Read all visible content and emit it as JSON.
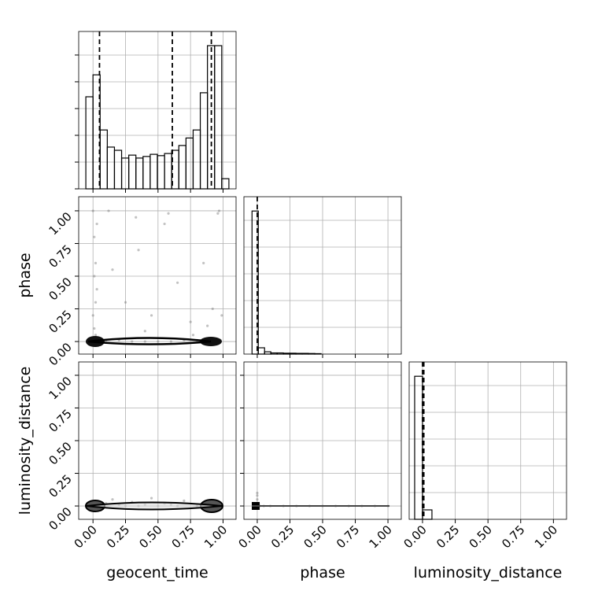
{
  "chart_data": [
    {
      "type": "histogram",
      "xlim": [
        -0.11,
        1.1
      ],
      "ylim": [
        0,
        5.88
      ],
      "bins": [
        -0.055,
        0.0,
        0.055,
        0.11,
        0.165,
        0.22,
        0.275,
        0.33,
        0.385,
        0.44,
        0.495,
        0.55,
        0.605,
        0.66,
        0.715,
        0.77,
        0.825,
        0.88,
        0.935,
        0.99,
        1.045
      ],
      "counts": [
        3.44,
        4.26,
        2.2,
        1.56,
        1.44,
        1.15,
        1.26,
        1.15,
        1.21,
        1.29,
        1.24,
        1.32,
        1.44,
        1.62,
        1.9,
        2.2,
        3.59,
        5.35,
        5.35,
        0.38
      ],
      "quantiles": [
        0.05,
        0.61,
        0.91
      ],
      "xticks": [
        0,
        0.25,
        0.5,
        0.75,
        1
      ],
      "yticks": [
        0,
        1,
        2,
        3,
        4,
        5
      ],
      "show_xtick_labels": false,
      "grid": true
    },
    {
      "type": "scatter",
      "ylabel": "phase",
      "xlim": [
        -0.11,
        1.1
      ],
      "ylim": [
        -0.096,
        1.108
      ],
      "x": [
        0.0,
        0.01,
        0.02,
        0.03,
        0.0,
        0.01,
        0.02,
        0.05,
        0.1,
        0.2,
        0.3,
        0.4,
        0.5,
        0.6,
        0.7,
        0.8,
        0.9,
        0.95,
        0.98,
        0.15,
        0.25,
        0.35,
        0.45,
        0.55,
        0.65,
        0.75,
        0.85,
        0.92,
        0.97,
        0.03,
        0.12,
        0.33,
        0.58,
        0.77,
        0.96,
        0.01,
        0.02,
        0.4,
        0.88,
        0.99
      ],
      "y": [
        1.0,
        0.8,
        0.6,
        0.4,
        0.2,
        0.1,
        0.05,
        0.02,
        0.01,
        0.01,
        0.0,
        0.0,
        0.0,
        0.0,
        0.01,
        0.01,
        0.0,
        0.0,
        0.01,
        0.55,
        0.3,
        0.7,
        0.2,
        0.9,
        0.45,
        0.15,
        0.6,
        0.25,
        1.0,
        0.9,
        1.0,
        0.95,
        0.98,
        0.05,
        0.98,
        0.5,
        0.3,
        0.08,
        0.12,
        0.2
      ],
      "xticks": [
        0,
        0.25,
        0.5,
        0.75,
        1
      ],
      "show_xtick_labels": false,
      "yticks": [
        {
          "value": 0,
          "label": "0.00"
        },
        {
          "value": 0.25,
          "label": "0.25"
        },
        {
          "value": 0.5,
          "label": "0.50"
        },
        {
          "value": 0.75,
          "label": "0.75"
        },
        {
          "value": 1,
          "label": "1.00"
        }
      ],
      "show_ytick_labels": true,
      "grid": true
    },
    {
      "type": "histogram",
      "xlim": [
        -0.102,
        1.102
      ],
      "ylim": [
        0,
        1.1
      ],
      "bins": [
        -0.04,
        0.008,
        0.056,
        0.104,
        0.152,
        0.2,
        0.248,
        0.296,
        0.344,
        0.392,
        0.44,
        0.488
      ],
      "counts": [
        1.0,
        0.044,
        0.016,
        0.008,
        0.008,
        0.006,
        0.006,
        0.005,
        0.005,
        0.004,
        0.003
      ],
      "quantiles": [
        0.0
      ],
      "xticks": [
        0,
        0.25,
        0.5,
        0.75,
        1
      ],
      "show_xtick_labels": false,
      "grid": true
    },
    {
      "type": "scatter",
      "ylabel": "luminosity_distance",
      "xlabel": "geocent_time",
      "xlim": [
        -0.11,
        1.1
      ],
      "ylim": [
        -0.102,
        1.102
      ],
      "x": [
        0.0,
        0.02,
        0.05,
        0.1,
        0.15,
        0.2,
        0.25,
        0.3,
        0.35,
        0.4,
        0.45,
        0.5,
        0.55,
        0.6,
        0.65,
        0.7,
        0.8,
        0.9,
        0.95,
        0.99
      ],
      "y": [
        0.0,
        0.01,
        0.0,
        0.02,
        0.05,
        0.01,
        0.0,
        0.03,
        0.0,
        0.01,
        0.06,
        0.0,
        0.02,
        0.01,
        0.0,
        0.04,
        0.0,
        0.01,
        0.03,
        0.0
      ],
      "xticks": [
        {
          "value": 0,
          "label": "0.00"
        },
        {
          "value": 0.25,
          "label": "0.25"
        },
        {
          "value": 0.5,
          "label": "0.50"
        },
        {
          "value": 0.75,
          "label": "0.75"
        },
        {
          "value": 1,
          "label": "1.00"
        }
      ],
      "show_xtick_labels": true,
      "yticks": [
        {
          "value": 0,
          "label": "0.00"
        },
        {
          "value": 0.25,
          "label": "0.25"
        },
        {
          "value": 0.5,
          "label": "0.50"
        },
        {
          "value": 0.75,
          "label": "0.75"
        },
        {
          "value": 1,
          "label": "1.00"
        }
      ],
      "show_ytick_labels": true,
      "grid": true
    },
    {
      "type": "scatter",
      "xlabel": "phase",
      "xlim": [
        -0.102,
        1.102
      ],
      "ylim": [
        -0.102,
        1.102
      ],
      "x": [
        0.0,
        0.0,
        0.01,
        0.02,
        0.05,
        0.1,
        0.2,
        0.3,
        0.4,
        0.5,
        0.6,
        0.7,
        0.8,
        0.9,
        1.0,
        0.0,
        0.0,
        0.01
      ],
      "y": [
        0.1,
        0.05,
        0.02,
        0.0,
        0.0,
        0.0,
        0.0,
        0.0,
        0.0,
        0.0,
        0.0,
        0.0,
        0.0,
        0.0,
        0.0,
        0.08,
        -0.02,
        0.01
      ],
      "xticks": [
        {
          "value": 0,
          "label": "0.00"
        },
        {
          "value": 0.25,
          "label": "0.25"
        },
        {
          "value": 0.5,
          "label": "0.50"
        },
        {
          "value": 0.75,
          "label": "0.75"
        },
        {
          "value": 1,
          "label": "1.00"
        }
      ],
      "show_xtick_labels": true,
      "yticks": [
        0,
        0.25,
        0.5,
        0.75,
        1
      ],
      "show_ytick_labels": false,
      "grid": true
    },
    {
      "type": "histogram",
      "xlabel": "luminosity_distance",
      "xlim": [
        -0.102,
        1.1
      ],
      "ylim": [
        0,
        1.1
      ],
      "bins": [
        -0.06,
        0.0,
        0.072
      ],
      "counts": [
        1.0,
        0.066
      ],
      "quantiles": [
        0.0,
        0.01
      ],
      "xticks": [
        {
          "value": 0,
          "label": "0.00"
        },
        {
          "value": 0.25,
          "label": "0.25"
        },
        {
          "value": 0.5,
          "label": "0.50"
        },
        {
          "value": 0.75,
          "label": "0.75"
        },
        {
          "value": 1,
          "label": "1.00"
        }
      ],
      "show_xtick_labels": true,
      "grid": true
    }
  ]
}
